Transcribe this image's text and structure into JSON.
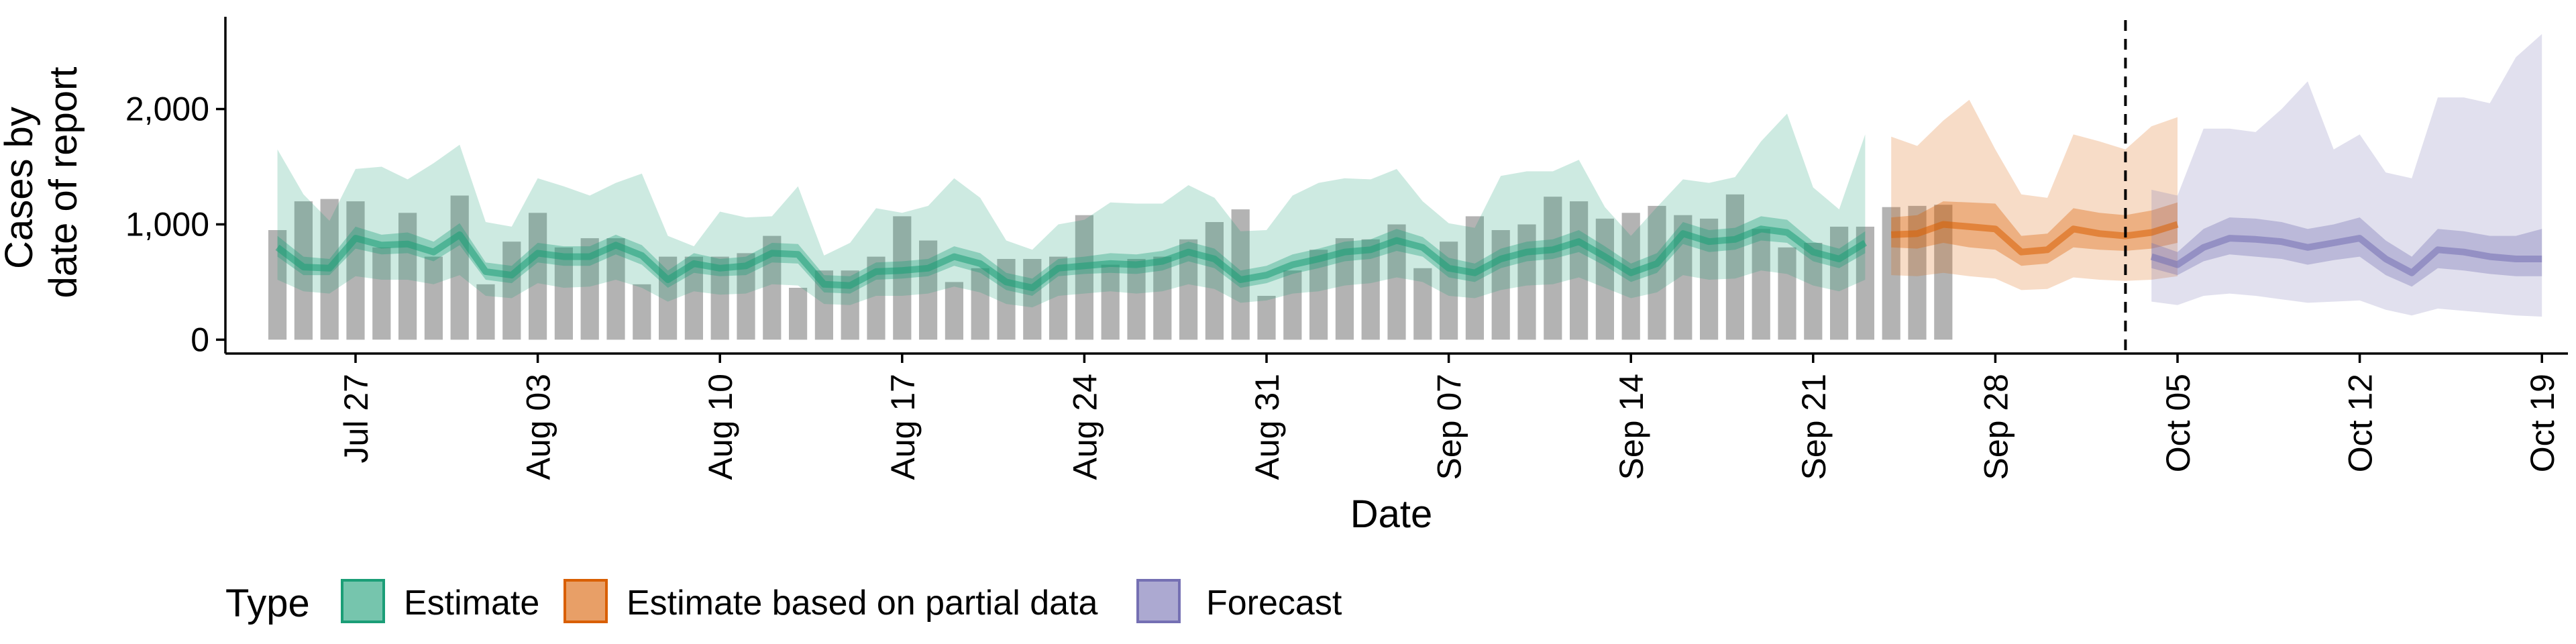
{
  "chart_data": {
    "type": "area",
    "title": "",
    "xlabel": "Date",
    "ylabel_lines": [
      "Cases by",
      "date of report"
    ],
    "xlim": [
      "2020-07-22",
      "2020-10-20"
    ],
    "ylim": [
      -120,
      2800
    ],
    "y_ticks": [
      0,
      1000,
      2000
    ],
    "y_tick_labels": [
      "0",
      "1,000",
      "2,000"
    ],
    "x_ticks": [
      "2020-07-27",
      "2020-08-03",
      "2020-08-10",
      "2020-08-17",
      "2020-08-24",
      "2020-08-31",
      "2020-09-07",
      "2020-09-14",
      "2020-09-21",
      "2020-09-28",
      "2020-10-05",
      "2020-10-12",
      "2020-10-19"
    ],
    "x_tick_labels": [
      "Jul 27",
      "Aug 03",
      "Aug 10",
      "Aug 17",
      "Aug 24",
      "Aug 31",
      "Sep 07",
      "Sep 14",
      "Sep 21",
      "Sep 28",
      "Oct 05",
      "Oct 12",
      "Oct 19"
    ],
    "vline_date": "2020-10-03",
    "grid": false,
    "legend_position": "bottom",
    "legend": {
      "title": "Type",
      "items": [
        {
          "label": "Estimate",
          "color": "#1B9E77"
        },
        {
          "label": "Estimate based on partial data",
          "color": "#D95F02"
        },
        {
          "label": "Forecast",
          "color": "#7570B3"
        }
      ]
    },
    "bars": {
      "color": "#b3b3b3",
      "start_date": "2020-07-24",
      "values": [
        950,
        1200,
        1220,
        1200,
        800,
        1100,
        720,
        1250,
        480,
        850,
        1100,
        800,
        880,
        880,
        480,
        720,
        720,
        720,
        750,
        900,
        450,
        600,
        600,
        720,
        1070,
        860,
        500,
        620,
        700,
        700,
        720,
        1080,
        650,
        700,
        720,
        870,
        1020,
        1130,
        380,
        600,
        780,
        880,
        870,
        1000,
        620,
        850,
        1070,
        950,
        1000,
        1240,
        1200,
        1050,
        1100,
        1160,
        1080,
        1050,
        1260,
        960,
        800,
        840,
        980,
        980,
        1150,
        1160,
        1170
      ]
    },
    "series": [
      {
        "name": "Estimate",
        "color": "#1B9E77",
        "start_date": "2020-07-24",
        "median": [
          800,
          630,
          620,
          880,
          820,
          830,
          760,
          910,
          590,
          560,
          750,
          720,
          720,
          820,
          730,
          520,
          660,
          620,
          640,
          750,
          740,
          480,
          470,
          590,
          600,
          620,
          720,
          660,
          500,
          450,
          620,
          640,
          660,
          650,
          680,
          760,
          700,
          520,
          560,
          650,
          700,
          760,
          780,
          860,
          800,
          620,
          580,
          700,
          760,
          780,
          850,
          720,
          580,
          660,
          920,
          850,
          870,
          960,
          930,
          760,
          700,
          840
        ],
        "lower50": [
          720,
          560,
          560,
          790,
          740,
          750,
          680,
          820,
          520,
          490,
          670,
          640,
          640,
          740,
          650,
          450,
          580,
          550,
          560,
          670,
          660,
          410,
          400,
          520,
          530,
          550,
          640,
          580,
          430,
          380,
          550,
          570,
          580,
          570,
          600,
          680,
          620,
          450,
          490,
          570,
          620,
          680,
          700,
          770,
          720,
          540,
          500,
          620,
          680,
          700,
          760,
          640,
          500,
          580,
          830,
          760,
          780,
          860,
          840,
          680,
          620,
          750
        ],
        "upper50": [
          900,
          720,
          700,
          980,
          910,
          930,
          850,
          1010,
          670,
          640,
          840,
          810,
          810,
          910,
          820,
          600,
          750,
          700,
          720,
          840,
          830,
          560,
          550,
          670,
          680,
          700,
          810,
          750,
          580,
          530,
          700,
          720,
          750,
          740,
          770,
          850,
          790,
          600,
          640,
          740,
          790,
          850,
          870,
          960,
          890,
          710,
          660,
          790,
          850,
          870,
          950,
          810,
          660,
          750,
          1020,
          950,
          970,
          1070,
          1040,
          850,
          790,
          940
        ],
        "lower90": [
          520,
          420,
          400,
          550,
          520,
          520,
          480,
          560,
          380,
          360,
          490,
          450,
          460,
          520,
          450,
          330,
          420,
          390,
          400,
          480,
          470,
          310,
          300,
          380,
          380,
          400,
          460,
          410,
          310,
          280,
          380,
          400,
          420,
          400,
          420,
          480,
          440,
          320,
          340,
          400,
          420,
          470,
          490,
          540,
          500,
          380,
          360,
          430,
          470,
          480,
          540,
          450,
          360,
          410,
          560,
          520,
          530,
          600,
          570,
          470,
          420,
          520
        ],
        "upper90": [
          1650,
          1260,
          1030,
          1480,
          1500,
          1390,
          1530,
          1690,
          1020,
          980,
          1400,
          1330,
          1250,
          1360,
          1440,
          900,
          810,
          1110,
          1060,
          1070,
          1330,
          730,
          840,
          1140,
          1100,
          1160,
          1400,
          1230,
          860,
          780,
          1000,
          1040,
          1190,
          1180,
          1180,
          1340,
          1230,
          940,
          950,
          1250,
          1360,
          1400,
          1390,
          1480,
          1200,
          1010,
          970,
          1420,
          1460,
          1460,
          1560,
          1150,
          900,
          1150,
          1390,
          1360,
          1410,
          1720,
          1960,
          1320,
          1130,
          1780
        ]
      },
      {
        "name": "Estimate based on partial data",
        "color": "#D95F02",
        "start_date": "2020-09-24",
        "median": [
          910,
          920,
          1000,
          980,
          960,
          760,
          780,
          960,
          920,
          900,
          930,
          1000
        ],
        "lower50": [
          800,
          790,
          840,
          800,
          780,
          640,
          660,
          800,
          780,
          770,
          790,
          840
        ],
        "upper50": [
          1060,
          1080,
          1200,
          1190,
          1180,
          900,
          920,
          1140,
          1100,
          1080,
          1120,
          1190
        ],
        "lower90": [
          560,
          550,
          580,
          550,
          530,
          430,
          440,
          540,
          520,
          510,
          520,
          550
        ],
        "upper90": [
          1760,
          1680,
          1900,
          2080,
          1650,
          1260,
          1230,
          1780,
          1720,
          1650,
          1850,
          1930
        ]
      },
      {
        "name": "Forecast",
        "color": "#7570B3",
        "start_date": "2020-10-04",
        "median": [
          720,
          650,
          800,
          880,
          870,
          850,
          800,
          840,
          880,
          700,
          580,
          780,
          760,
          720,
          700,
          700
        ],
        "lower50": [
          620,
          560,
          680,
          740,
          720,
          700,
          650,
          690,
          720,
          560,
          460,
          620,
          600,
          570,
          550,
          550
        ],
        "upper50": [
          840,
          760,
          960,
          1060,
          1050,
          1020,
          960,
          1000,
          1060,
          860,
          720,
          960,
          940,
          900,
          900,
          960
        ],
        "lower90": [
          330,
          300,
          380,
          400,
          380,
          350,
          320,
          330,
          340,
          260,
          210,
          270,
          250,
          230,
          210,
          200
        ],
        "upper90": [
          1300,
          1250,
          1830,
          1830,
          1800,
          2000,
          2240,
          1650,
          1780,
          1450,
          1400,
          2100,
          2100,
          2050,
          2450,
          2650
        ]
      }
    ]
  }
}
